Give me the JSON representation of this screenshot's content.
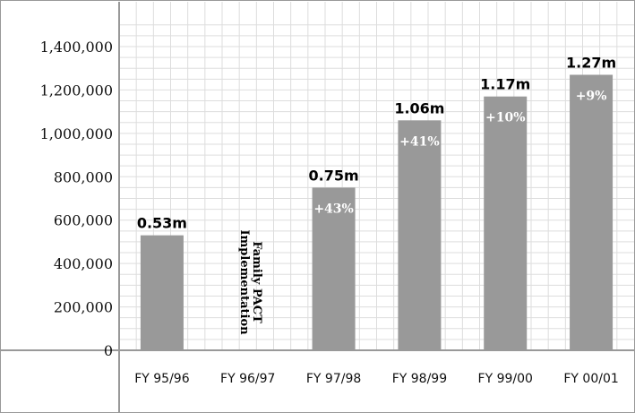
{
  "chart_data": {
    "type": "bar",
    "categories": [
      "FY 95/96",
      "FY 96/97",
      "FY 97/98",
      "FY 98/99",
      "FY 99/00",
      "FY 00/01"
    ],
    "values": [
      530000,
      null,
      750000,
      1060000,
      1170000,
      1270000
    ],
    "value_labels": [
      "0.53m",
      "",
      "0.75m",
      "1.06m",
      "1.17m",
      "1.27m"
    ],
    "growth_labels": [
      "",
      "",
      "+43%",
      "+41%",
      "+10%",
      "+9%"
    ],
    "yticks": [
      0,
      200000,
      400000,
      600000,
      800000,
      1000000,
      1200000,
      1400000
    ],
    "ytick_labels": [
      "0",
      "200,000",
      "400,000",
      "600,000",
      "800,000",
      "1,000,000",
      "1,200,000",
      "1,400,000"
    ],
    "ylim": [
      0,
      1500000
    ],
    "annotation": {
      "lines": [
        "Family PACT",
        "Implementation"
      ],
      "category": "FY 96/97"
    },
    "grid": true,
    "bar_color": "#999999",
    "grid_color": "#dddddd",
    "axis_color": "#999999"
  }
}
